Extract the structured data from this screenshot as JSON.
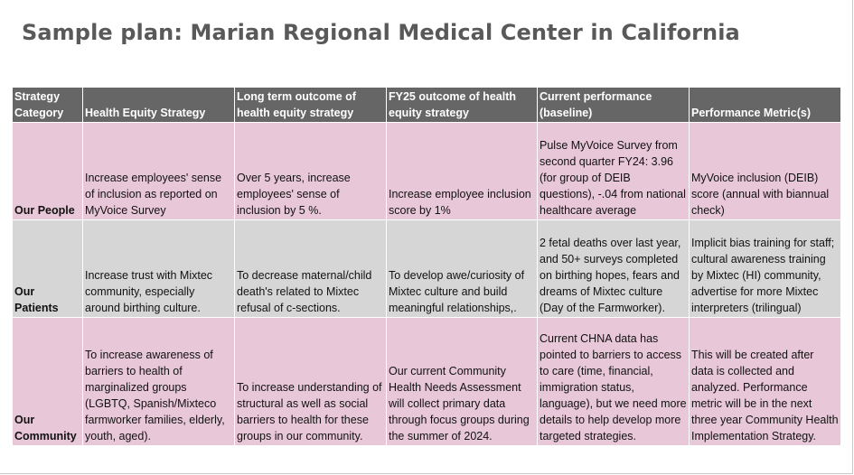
{
  "title": "Sample plan: Marian Regional Medical Center in California",
  "table": {
    "headers": [
      "Strategy Category",
      "Health Equity Strategy",
      "Long term outcome of health equity strategy",
      "FY25 outcome of health equity strategy",
      "Current performance (baseline)",
      "Performance Metric(s)"
    ],
    "rows": [
      {
        "category": "Our People",
        "strategy": "Increase employees' sense of inclusion as reported on MyVoice Survey",
        "long_term": "Over 5 years, increase employees' sense of inclusion by 5 %.",
        "fy25": "Increase employee inclusion score by 1%",
        "baseline": "Pulse MyVoice Survey from second quarter FY24: 3.96 (for group of DEIB questions), -.04 from national healthcare average",
        "metric": "MyVoice inclusion (DEIB) score (annual with biannual check)"
      },
      {
        "category": "Our Patients",
        "strategy": "Increase trust with Mixtec community, especially around birthing culture.",
        "long_term": "To decrease maternal/child death's related to Mixtec refusal of c-sections.",
        "fy25": "To develop awe/curiosity of Mixtec culture and build meaningful relationships,.",
        "baseline": "2 fetal deaths over last year, and 50+ surveys completed on birthing hopes, fears and dreams of Mixtec culture (Day of the Farmworker).",
        "metric": "Implicit bias training for staff; cultural awareness training by Mixtec (HI) community, advertise for more Mixtec interpreters (trilingual)"
      },
      {
        "category": "Our Community",
        "strategy": "To increase awareness of barriers to health of marginalized groups (LGBTQ, Spanish/Mixteco farmworker families, elderly, youth, aged).",
        "long_term": "To increase understanding of structural as well as social barriers to health for these groups in our community.",
        "fy25": "Our current Community Health Needs Assessment will collect primary data through focus groups during the summer of 2024.",
        "baseline": "Current CHNA data has pointed to barriers to access to care (time, financial, immigration status, language), but we need more details to help develop more targeted strategies.",
        "metric": "This will be created after data is collected and analyzed. Performance metric will be in the next three year Community Health Implementation Strategy."
      }
    ]
  }
}
